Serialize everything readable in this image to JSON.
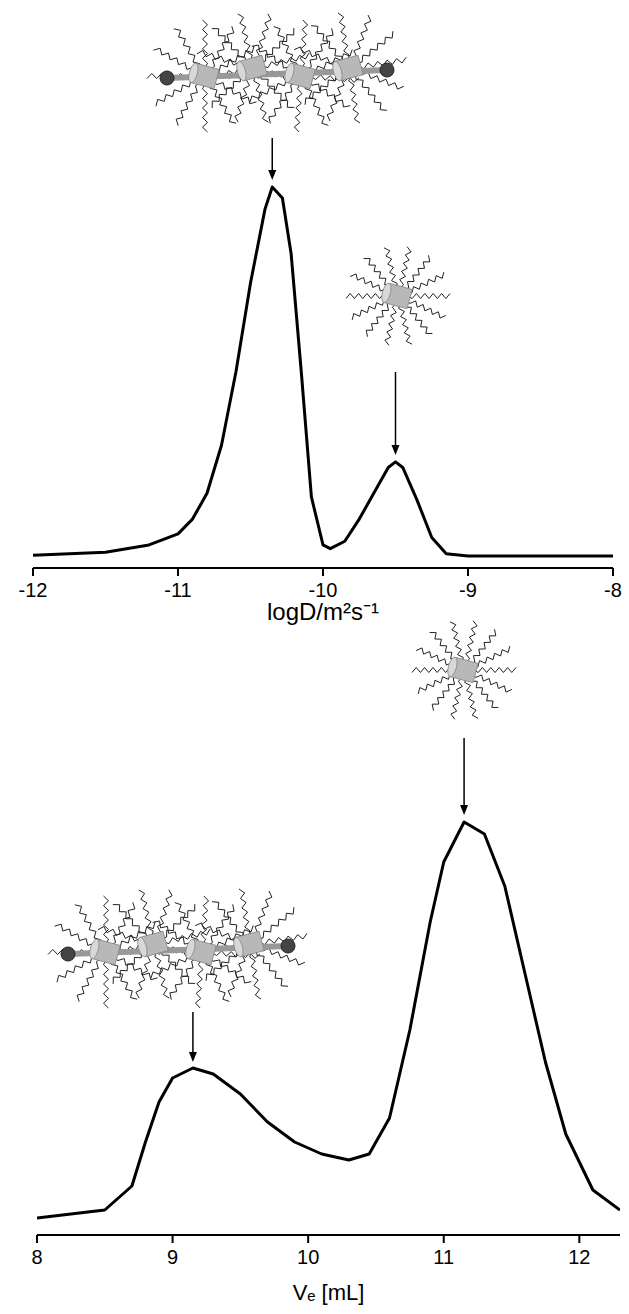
{
  "chart_data": [
    {
      "type": "line",
      "x": [
        -12,
        -11.5,
        -11.2,
        -11.0,
        -10.9,
        -10.8,
        -10.7,
        -10.6,
        -10.5,
        -10.4,
        -10.35,
        -10.28,
        -10.22,
        -10.15,
        -10.08,
        -10.0,
        -9.95,
        -9.85,
        -9.75,
        -9.65,
        -9.55,
        -9.5,
        -9.45,
        -9.35,
        -9.25,
        -9.15,
        -9.0,
        -8.0
      ],
      "values": [
        0.002,
        0.01,
        0.03,
        0.06,
        0.1,
        0.17,
        0.3,
        0.5,
        0.74,
        0.94,
        1.0,
        0.97,
        0.82,
        0.5,
        0.16,
        0.03,
        0.02,
        0.04,
        0.1,
        0.17,
        0.24,
        0.255,
        0.24,
        0.15,
        0.05,
        0.006,
        0,
        0
      ],
      "xlim": [
        -12,
        -8
      ],
      "xticks": [
        -12,
        -11,
        -10,
        -9,
        -8
      ],
      "ylim": [
        0,
        1
      ],
      "xlabel": "logD/m²s⁻¹",
      "tick_labels": "x",
      "color": "#000000"
    },
    {
      "type": "line",
      "x": [
        8.0,
        8.5,
        8.7,
        8.8,
        8.9,
        9.0,
        9.15,
        9.3,
        9.5,
        9.7,
        9.9,
        10.1,
        10.3,
        10.45,
        10.6,
        10.75,
        10.9,
        11.0,
        11.15,
        11.3,
        11.45,
        11.6,
        11.75,
        11.9,
        12.1,
        12.3
      ],
      "values": [
        0.01,
        0.03,
        0.09,
        0.2,
        0.3,
        0.36,
        0.385,
        0.37,
        0.32,
        0.25,
        0.2,
        0.17,
        0.155,
        0.17,
        0.26,
        0.48,
        0.75,
        0.9,
        1.0,
        0.97,
        0.84,
        0.62,
        0.4,
        0.22,
        0.08,
        0.03
      ],
      "xlim": [
        8,
        12.3
      ],
      "xticks": [
        8,
        9,
        10,
        11,
        12
      ],
      "ylim": [
        0,
        1
      ],
      "xlabel": "Vₑ [mL]",
      "tick_labels": "x",
      "color": "#000000"
    }
  ]
}
